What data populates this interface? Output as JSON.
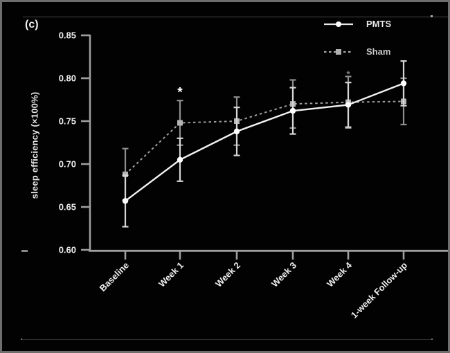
{
  "figure": {
    "panel_label": "(c)",
    "background_color": "#020202",
    "border_color": "#6e6e6e"
  },
  "legend": {
    "items": [
      {
        "label": "PMTS",
        "marker": "circle",
        "line_style": "solid",
        "color": "#f2f2f2"
      },
      {
        "label": "Sham",
        "marker": "square",
        "line_style": "dashed",
        "color": "#a8a8a8"
      }
    ]
  },
  "chart_data": {
    "type": "line",
    "title": "",
    "xlabel": "",
    "ylabel": "sleep efficiency (×100%)",
    "categories": [
      "Baseline",
      "Week 1",
      "Week 2",
      "Week 3",
      "Week 4",
      "1-week Follow-up"
    ],
    "ylim": [
      0.6,
      0.85
    ],
    "y_ticks": [
      0.6,
      0.65,
      0.7,
      0.75,
      0.8,
      0.85
    ],
    "y_tick_labels": [
      "0.60",
      "0.65",
      "0.70",
      "0.75",
      "0.80",
      "0.85"
    ],
    "grid": false,
    "legend_position": "top-right",
    "series": [
      {
        "name": "PMTS",
        "values": [
          0.657,
          0.705,
          0.738,
          0.762,
          0.769,
          0.794
        ],
        "errors": [
          0.03,
          0.025,
          0.028,
          0.027,
          0.026,
          0.026
        ],
        "marker": "circle",
        "line_style": "solid",
        "color": "#f2f2f2",
        "marker_color": "#ffffff",
        "error_color": "#d6d6d6"
      },
      {
        "name": "Sham",
        "values": [
          0.688,
          0.748,
          0.75,
          0.77,
          0.772,
          0.773
        ],
        "errors": [
          0.03,
          0.026,
          0.028,
          0.028,
          0.03,
          0.027
        ],
        "marker": "square",
        "line_style": "dashed",
        "color": "#a0a0a0",
        "marker_color": "#b5b5b5",
        "error_color": "#8f8f8f"
      }
    ],
    "annotations": [
      {
        "category": "Week 1",
        "value": 0.787,
        "symbol": "*",
        "opacity": 1,
        "size": 19
      },
      {
        "category": "Week 4",
        "value": 0.807,
        "symbol": "*",
        "opacity": 0.5,
        "size": 13
      }
    ],
    "axis_color": "#9f9f9f",
    "tick_label_color": "#ededed"
  }
}
